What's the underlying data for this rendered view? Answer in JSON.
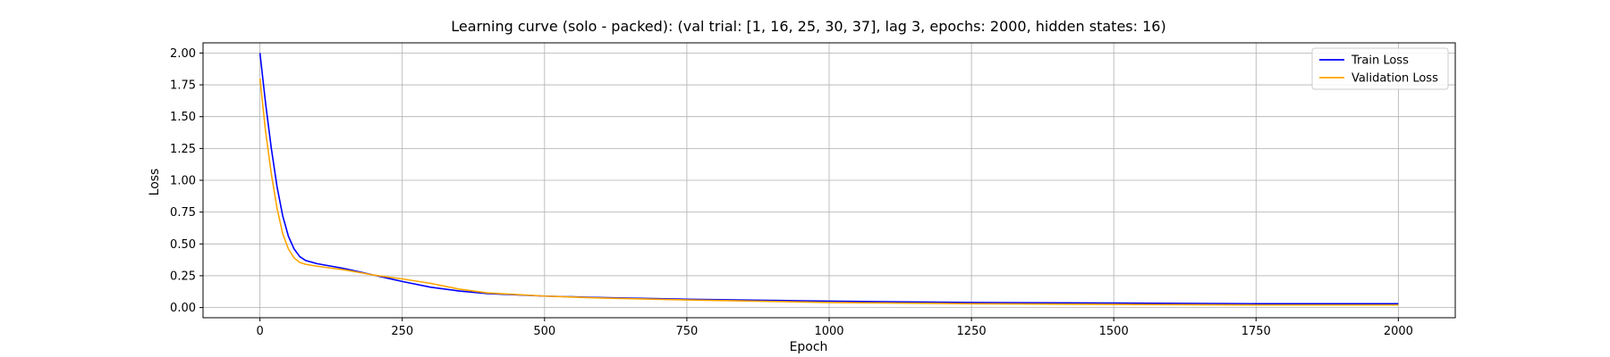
{
  "chart_data": {
    "type": "line",
    "title": "Learning curve (solo - packed): (val trial: [1, 16, 25, 30, 37], lag 3, epochs: 2000, hidden states: 16)",
    "xlabel": "Epoch",
    "ylabel": "Loss",
    "xlim": [
      -100,
      2100
    ],
    "ylim": [
      -0.08,
      2.08
    ],
    "xticks": [
      0,
      250,
      500,
      750,
      1000,
      1250,
      1500,
      1750,
      2000
    ],
    "xtick_labels": [
      "0",
      "250",
      "500",
      "750",
      "1000",
      "1250",
      "1500",
      "1750",
      "2000"
    ],
    "yticks": [
      0,
      0.25,
      0.5,
      0.75,
      1.0,
      1.25,
      1.5,
      1.75,
      2.0
    ],
    "ytick_labels": [
      "0.00",
      "0.25",
      "0.50",
      "0.75",
      "1.00",
      "1.25",
      "1.50",
      "1.75",
      "2.00"
    ],
    "grid": true,
    "legend_position": "top-right",
    "series": [
      {
        "name": "Train Loss",
        "color": "#0000ff",
        "x": [
          0,
          10,
          20,
          30,
          40,
          50,
          60,
          70,
          80,
          100,
          125,
          150,
          175,
          200,
          225,
          250,
          300,
          350,
          400,
          500,
          600,
          750,
          1000,
          1250,
          1500,
          1750,
          2000
        ],
        "y": [
          2.0,
          1.6,
          1.25,
          0.95,
          0.72,
          0.56,
          0.46,
          0.4,
          0.37,
          0.345,
          0.325,
          0.305,
          0.28,
          0.255,
          0.23,
          0.205,
          0.16,
          0.13,
          0.11,
          0.09,
          0.078,
          0.065,
          0.05,
          0.04,
          0.035,
          0.03,
          0.03
        ]
      },
      {
        "name": "Validation Loss",
        "color": "#ffa500",
        "x": [
          0,
          10,
          20,
          30,
          40,
          50,
          60,
          70,
          80,
          100,
          125,
          150,
          175,
          200,
          225,
          250,
          300,
          350,
          400,
          500,
          600,
          750,
          1000,
          1250,
          1500,
          1750,
          2000
        ],
        "y": [
          1.8,
          1.38,
          1.05,
          0.78,
          0.58,
          0.46,
          0.39,
          0.355,
          0.34,
          0.325,
          0.31,
          0.295,
          0.275,
          0.255,
          0.24,
          0.225,
          0.19,
          0.145,
          0.115,
          0.09,
          0.075,
          0.06,
          0.04,
          0.03,
          0.025,
          0.02,
          0.02
        ]
      }
    ]
  }
}
